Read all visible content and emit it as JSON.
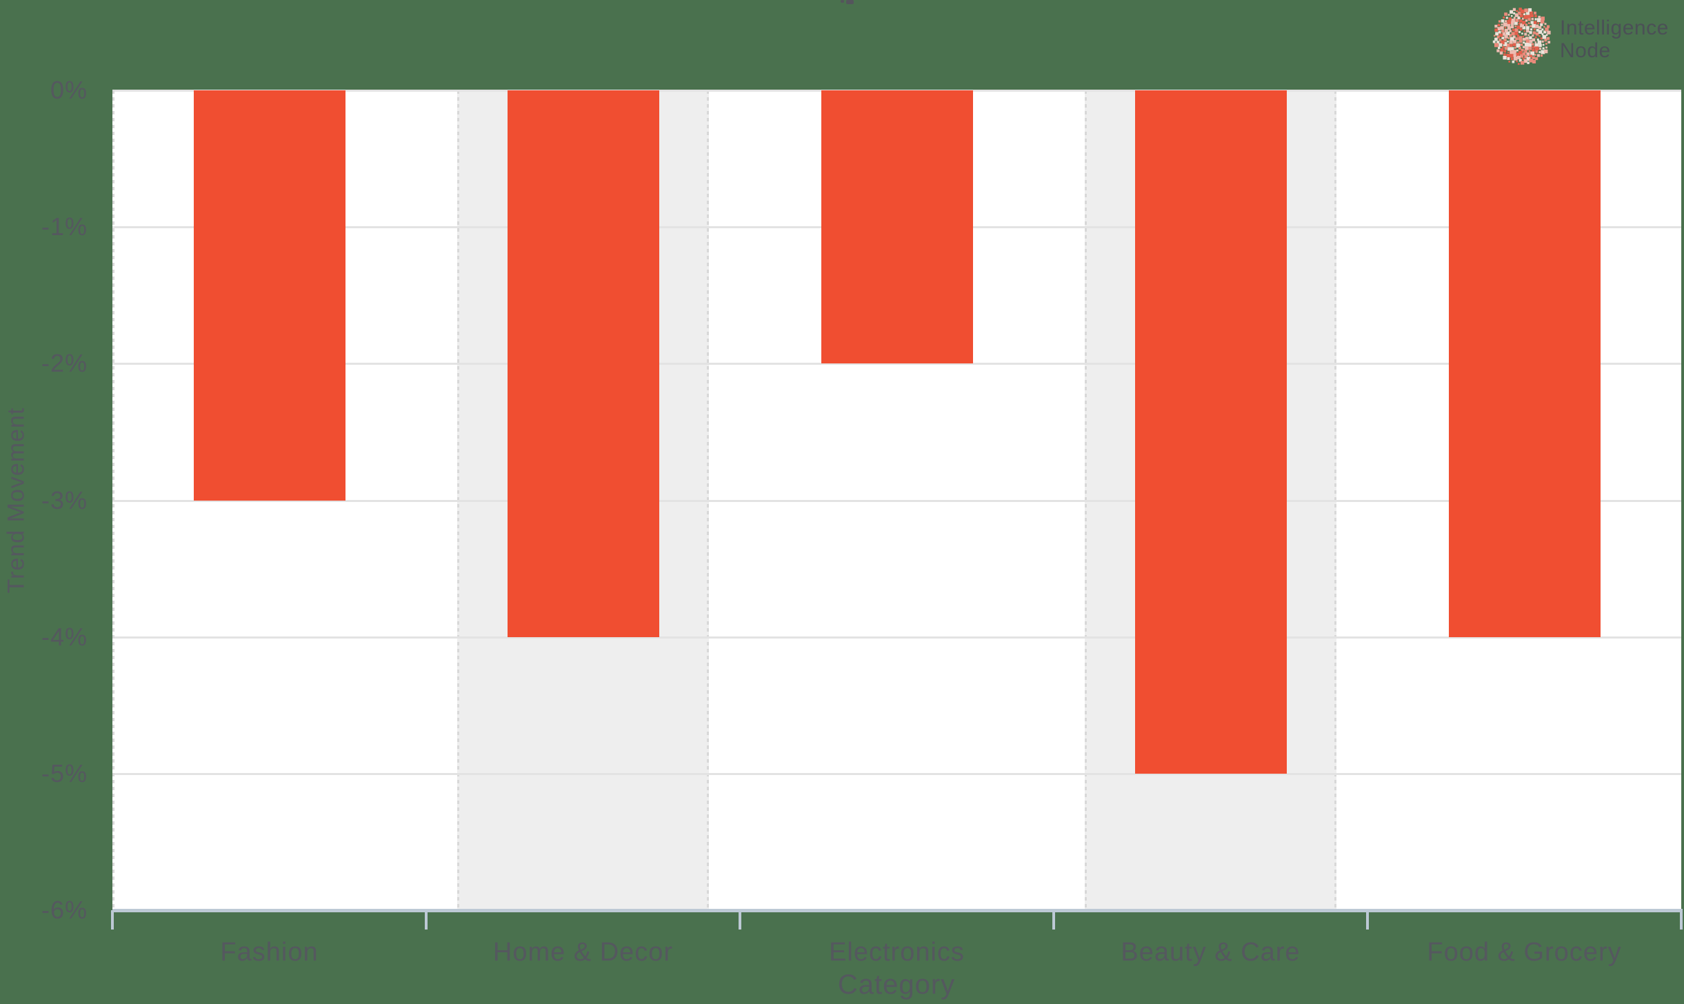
{
  "page": {
    "background_color": "#4a714e"
  },
  "logo": {
    "line1": "Intelligence",
    "line2": "Node",
    "text_color": "#4b5056",
    "dot_colors": [
      "#e2604d",
      "#ea8b7b",
      "#eebcb2",
      "#ece3da"
    ]
  },
  "chart_data": {
    "type": "bar",
    "categories": [
      "Fashion",
      "Home & Decor",
      "Electronics",
      "Beauty & Care",
      "Food & Grocery"
    ],
    "values": [
      -3,
      -4,
      -2,
      -5,
      -4
    ],
    "title": "",
    "xlabel": "Category",
    "ylabel": "Trend Movement",
    "ylim": [
      -6,
      0
    ],
    "yticks": [
      "0%",
      "-1%",
      "-2%",
      "-3%",
      "-4%",
      "-5%",
      "-6%"
    ],
    "grid": true,
    "legend": false,
    "bar_color": "#f04e31",
    "plot_background": "#ffffff",
    "gridline_color": "#e3e3e3",
    "axis_line_color": "#bdc9d5",
    "label_color": "#55585f",
    "highlighted_band_color": "#eeeeee",
    "highlighted_category_indices": [
      1,
      3
    ]
  }
}
